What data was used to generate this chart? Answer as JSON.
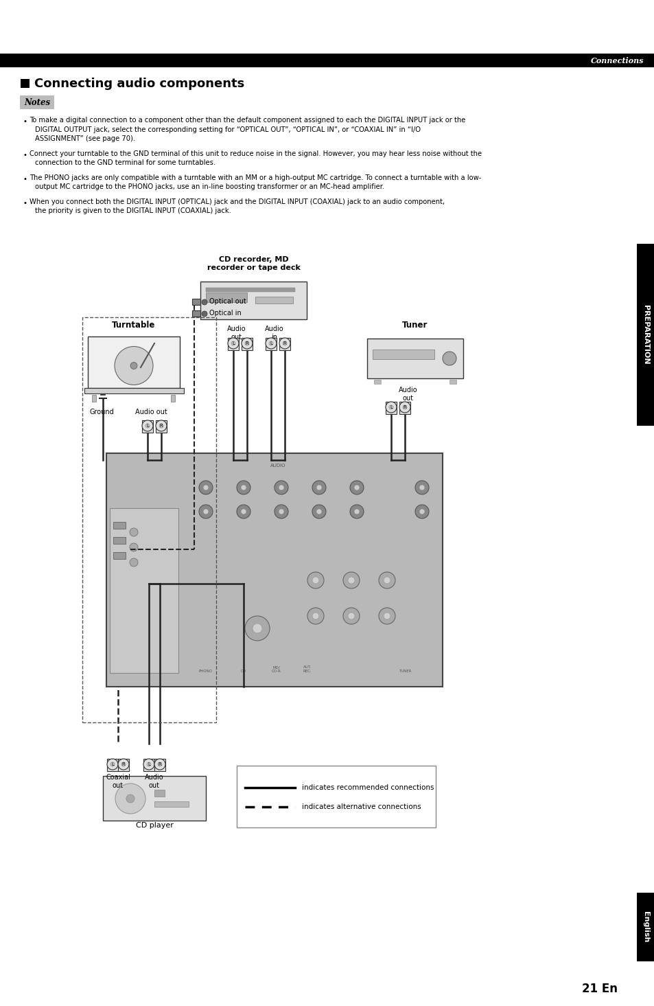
{
  "bg_color": "#ffffff",
  "header_bar_color": "#000000",
  "header_text": "Connections",
  "header_text_color": "#ffffff",
  "title_square_color": "#000000",
  "title": "Connecting audio components",
  "notes_bg": "#bbbbbb",
  "notes_label": "Notes",
  "bullet_points": [
    "To make a digital connection to a component other than the default component assigned to each the DIGITAL INPUT jack or the\nDIGITAL OUTPUT jack, select the corresponding setting for “OPTICAL OUT”, “OPTICAL IN”, or “COAXIAL IN” in “I/O\nASSIGNMENT” (see page 70).",
    "Connect your turntable to the GND terminal of this unit to reduce noise in the signal. However, you may hear less noise without the\nconnection to the GND terminal for some turntables.",
    "The PHONO jacks are only compatible with a turntable with an MM or a high-output MC cartridge. To connect a turntable with a low-\noutput MC cartridge to the PHONO jacks, use an in-line boosting transformer or an MC-head amplifier.",
    "When you connect both the DIGITAL INPUT (OPTICAL) jack and the DIGITAL INPUT (COAXIAL) jack to an audio component,\nthe priority is given to the DIGITAL INPUT (COAXIAL) jack."
  ],
  "side_bar_color": "#000000",
  "side_text": "PREPARATION",
  "side_text_color": "#ffffff",
  "bottom_side_bar_color": "#000000",
  "bottom_side_text": "English",
  "bottom_side_text_color": "#ffffff",
  "page_number": "21 En",
  "legend_solid": "indicates recommended connections",
  "legend_dashed": "indicates alternative connections",
  "diagram": {
    "cd_recorder_label": "CD recorder, MD\nrecorder or tape deck",
    "turntable_label": "Turntable",
    "tuner_label": "Tuner",
    "cd_player_label": "CD player",
    "optical_out_label": "Optical out",
    "optical_in_label": "Optical in",
    "audio_out_label": "Audio\nout",
    "audio_in_label": "Audio\nin",
    "audio_out_tuner_label": "Audio\nout",
    "ground_label": "Ground",
    "audio_out_tt_label": "Audio out",
    "coaxial_out_label": "Coaxial\nout",
    "audio_out_cdp_label": "Audio\nout"
  }
}
